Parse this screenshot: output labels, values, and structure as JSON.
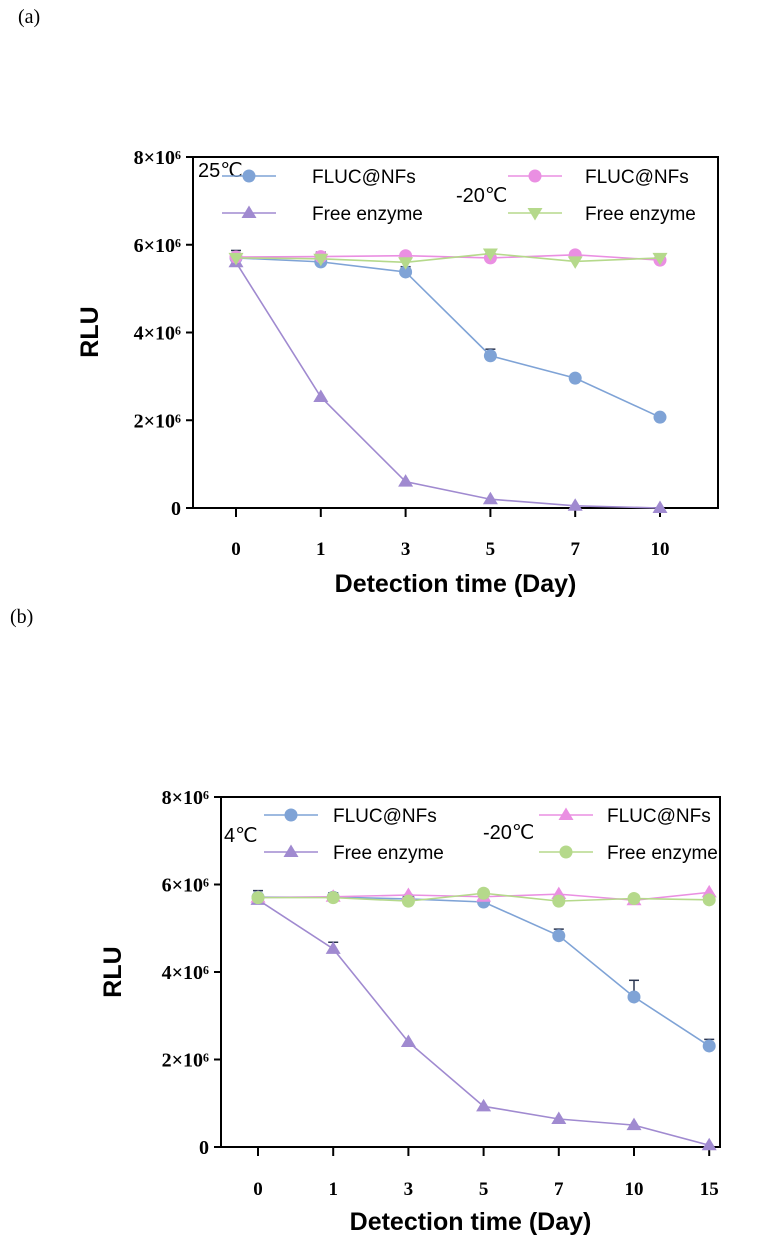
{
  "panels": [
    "(a)",
    "(b)"
  ],
  "chart_data": [
    {
      "type": "line",
      "panel": "(a)",
      "xlabel": "Detection time (Day)",
      "ylabel": "RLU",
      "categories": [
        "0",
        "1",
        "3",
        "5",
        "7",
        "10"
      ],
      "ylim": [
        0,
        8000000
      ],
      "yticks": [
        0,
        2000000,
        4000000,
        6000000,
        8000000
      ],
      "ytick_labels": [
        "0",
        "2×10⁶",
        "4×10⁶",
        "6×10⁶",
        "8×10⁶"
      ],
      "grid": false,
      "legend_groups": [
        {
          "label": "25℃",
          "entries": [
            0,
            1
          ]
        },
        {
          "label": "-20℃",
          "entries": [
            2,
            3
          ]
        }
      ],
      "series": [
        {
          "name": "FLUC@NFs",
          "group": "25℃",
          "marker": "circle",
          "color": "#7fa3d6",
          "values": [
            5700000,
            5610000,
            5380000,
            3470000,
            2960000,
            2070000
          ],
          "yerr": [
            100000,
            60000,
            120000,
            150000,
            0,
            0
          ]
        },
        {
          "name": "Free enzyme",
          "group": "25℃",
          "marker": "triangle-up",
          "color": "#a08ad0",
          "values": [
            5600000,
            2530000,
            600000,
            200000,
            50000,
            0
          ],
          "yerr": [
            0,
            0,
            0,
            0,
            0,
            0
          ]
        },
        {
          "name": "FLUC@NFs",
          "group": "-20℃",
          "marker": "circle",
          "color": "#ea8fe2",
          "values": [
            5720000,
            5730000,
            5750000,
            5700000,
            5770000,
            5650000
          ],
          "yerr": [
            150000,
            100000,
            0,
            100000,
            0,
            0
          ]
        },
        {
          "name": "Free enzyme",
          "group": "-20℃",
          "marker": "triangle-down",
          "color": "#b5d98b",
          "values": [
            5700000,
            5680000,
            5600000,
            5800000,
            5620000,
            5700000
          ],
          "yerr": [
            0,
            0,
            0,
            50000,
            0,
            0
          ]
        }
      ]
    },
    {
      "type": "line",
      "panel": "(b)",
      "xlabel": "Detection time (Day)",
      "ylabel": "RLU",
      "categories": [
        "0",
        "1",
        "3",
        "5",
        "7",
        "10",
        "15"
      ],
      "ylim": [
        0,
        8000000
      ],
      "yticks": [
        0,
        2000000,
        4000000,
        6000000,
        8000000
      ],
      "ytick_labels": [
        "0",
        "2×10⁶",
        "4×10⁶",
        "6×10⁶",
        "8×10⁶"
      ],
      "grid": false,
      "legend_groups": [
        {
          "label": "4℃",
          "entries": [
            0,
            1
          ]
        },
        {
          "label": "-20℃",
          "entries": [
            2,
            3
          ]
        }
      ],
      "series": [
        {
          "name": "FLUC@NFs",
          "group": "4℃",
          "marker": "circle",
          "color": "#7fa3d6",
          "values": [
            5710000,
            5710000,
            5670000,
            5600000,
            4830000,
            3430000,
            2310000
          ],
          "yerr": [
            150000,
            100000,
            80000,
            0,
            150000,
            380000,
            150000
          ]
        },
        {
          "name": "Free enzyme",
          "group": "4℃",
          "marker": "triangle-up",
          "color": "#a08ad0",
          "values": [
            5650000,
            4530000,
            2400000,
            930000,
            640000,
            500000,
            40000
          ],
          "yerr": [
            0,
            150000,
            0,
            0,
            0,
            0,
            0
          ]
        },
        {
          "name": "FLUC@NFs",
          "group": "-20℃",
          "marker": "triangle-up",
          "color": "#ea8fe2",
          "values": [
            5700000,
            5720000,
            5760000,
            5720000,
            5780000,
            5640000,
            5820000
          ],
          "yerr": [
            0,
            0,
            0,
            100000,
            0,
            0,
            0
          ]
        },
        {
          "name": "Free enzyme",
          "group": "-20℃",
          "marker": "circle",
          "color": "#b5d98b",
          "values": [
            5700000,
            5700000,
            5620000,
            5800000,
            5620000,
            5680000,
            5650000
          ],
          "yerr": [
            0,
            0,
            100000,
            0,
            0,
            0,
            0
          ]
        }
      ]
    }
  ]
}
